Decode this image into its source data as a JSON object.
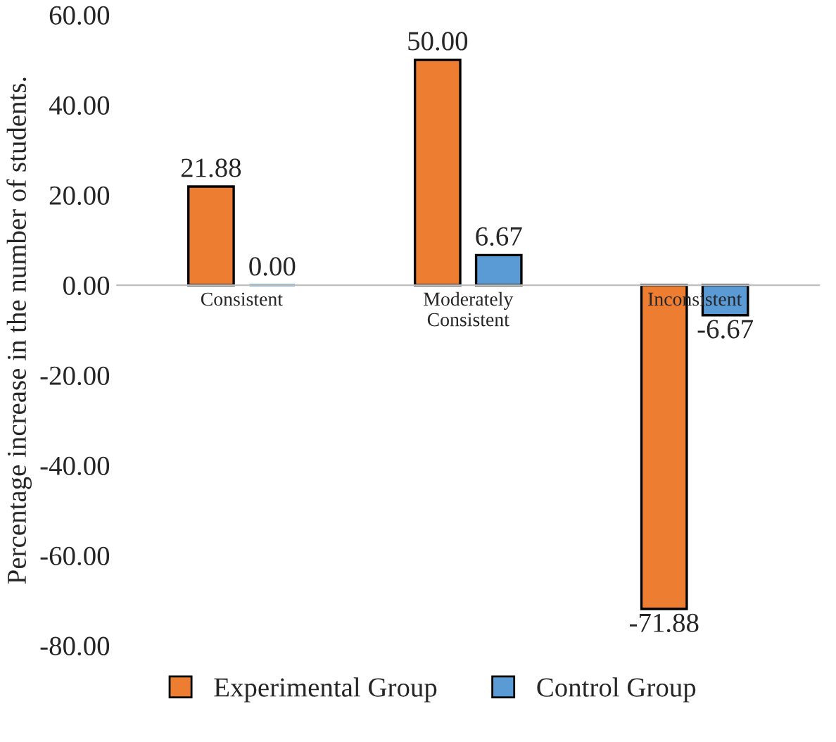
{
  "chart_data": {
    "type": "bar",
    "ylabel": "Percentage increase in the number of students.",
    "categories": [
      "Consistent",
      "Moderately\nConsistent",
      "Inconsistent"
    ],
    "series": [
      {
        "name": "Experimental Group",
        "color": "#ed7d31",
        "values": [
          21.88,
          50.0,
          -71.88
        ],
        "value_labels": [
          "21.88",
          "50.00",
          "-71.88"
        ]
      },
      {
        "name": "Control Group",
        "color": "#5b9bd5",
        "values": [
          0.0,
          6.67,
          -6.67
        ],
        "value_labels": [
          "0.00",
          "6.67",
          "-6.67"
        ]
      }
    ],
    "ylim": [
      -80,
      60
    ],
    "yticks": [
      {
        "value": -80,
        "label": "-80.00"
      },
      {
        "value": -60,
        "label": "-60.00"
      },
      {
        "value": -40,
        "label": "-40.00"
      },
      {
        "value": -20,
        "label": "-20.00"
      },
      {
        "value": 0,
        "label": "0.00"
      },
      {
        "value": 20,
        "label": "20.00"
      },
      {
        "value": 40,
        "label": "40.00"
      },
      {
        "value": 60,
        "label": "60.00"
      }
    ],
    "grid": false,
    "legend": "bottom"
  }
}
